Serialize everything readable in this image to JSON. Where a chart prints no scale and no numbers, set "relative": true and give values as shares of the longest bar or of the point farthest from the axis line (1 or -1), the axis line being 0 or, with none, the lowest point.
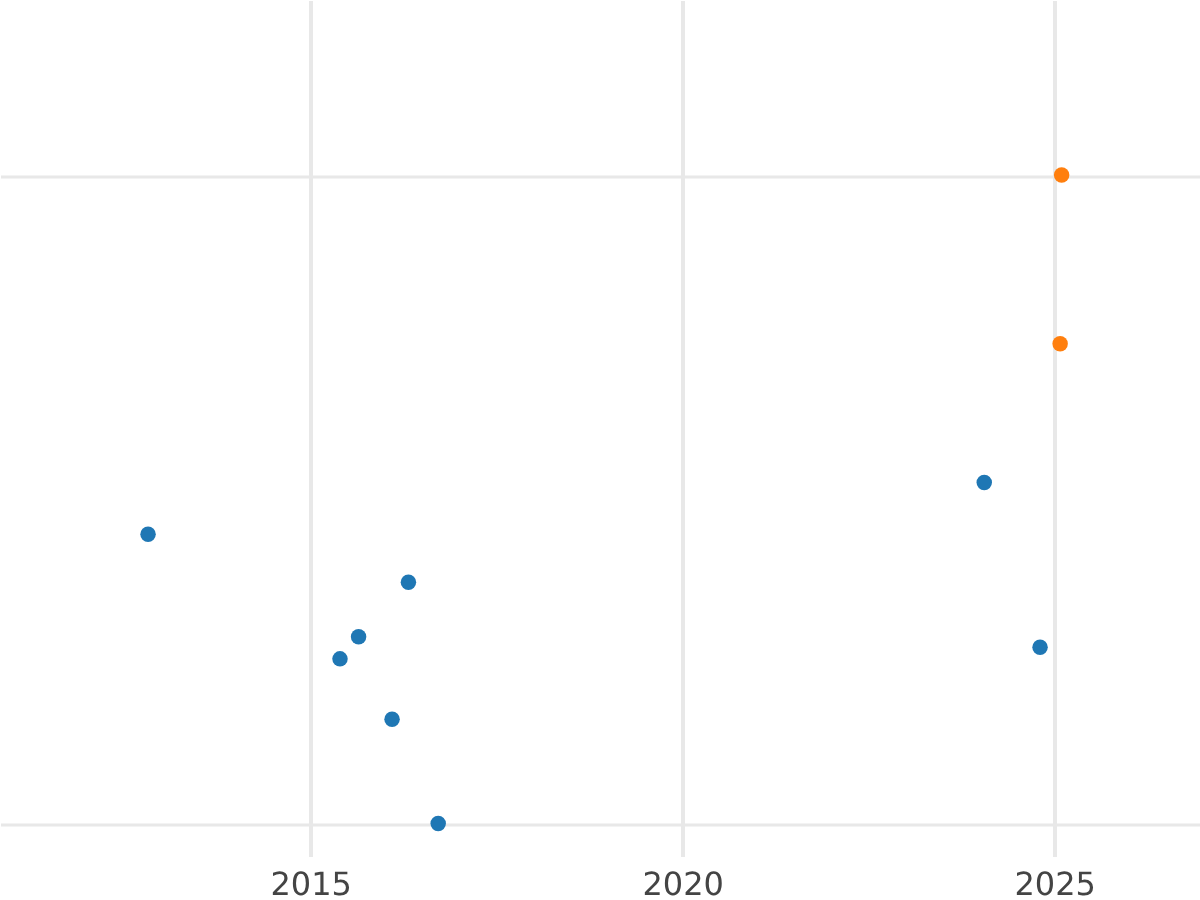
{
  "chart_data": {
    "type": "scatter",
    "relative": true,
    "grid": true,
    "marker": "circle",
    "legend": false,
    "xlim": [
      2010.83,
      2026.96
    ],
    "xticks": [
      2015,
      2020,
      2025
    ],
    "series": [
      {
        "color": "#1f77b4",
        "x": [
          2012.82,
          2016.32,
          2015.65,
          2015.4,
          2016.1,
          2016.72,
          2024.06,
          2024.81
        ],
        "values": [
          0.446,
          0.372,
          0.288,
          0.254,
          0.161,
          0,
          0.526,
          0.272
        ]
      },
      {
        "color": "#ff7f0e",
        "x": [
          2025.1,
          2025.08
        ],
        "values": [
          1,
          0.74
        ]
      }
    ]
  }
}
